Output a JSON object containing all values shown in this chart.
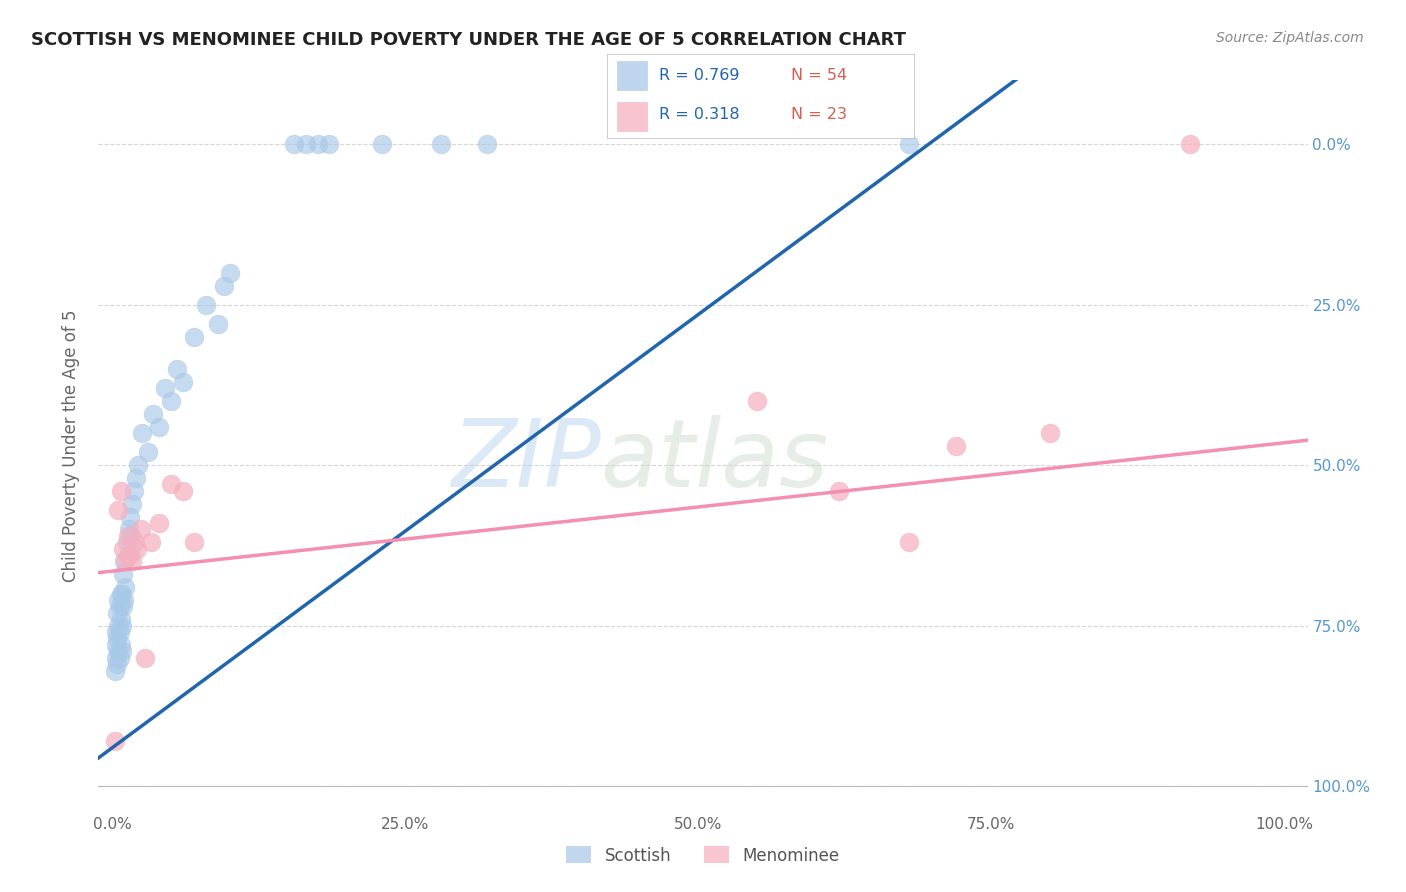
{
  "title": "SCOTTISH VS MENOMINEE CHILD POVERTY UNDER THE AGE OF 5 CORRELATION CHART",
  "source": "Source: ZipAtlas.com",
  "ylabel": "Child Poverty Under the Age of 5",
  "xlim": [
    -0.012,
    1.02
  ],
  "ylim": [
    -0.04,
    1.1
  ],
  "xtick_positions": [
    0.0,
    0.25,
    0.5,
    0.75,
    1.0
  ],
  "ytick_positions": [
    0.0,
    0.25,
    0.5,
    0.75,
    1.0
  ],
  "xticklabels": [
    "0.0%",
    "25.0%",
    "50.0%",
    "75.0%",
    "100.0%"
  ],
  "right_yticklabels": [
    "100.0%",
    "75.0%",
    "50.0%",
    "25.0%",
    "0.0%"
  ],
  "watermark_zip": "ZIP",
  "watermark_atlas": "atlas",
  "scottish_color": "#a8c8e8",
  "menominee_color": "#f5b0c0",
  "scottish_R": 0.769,
  "scottish_N": 54,
  "menominee_R": 0.318,
  "menominee_N": 23,
  "legend_R_color": "#2166ac",
  "legend_N_color": "#d6604d",
  "scottish_line_color": "#2166ac",
  "menominee_line_color": "#f48fb1",
  "grid_color": "#cccccc",
  "background_color": "#ffffff",
  "scatter_size": 180,
  "scottish_slope": 1.35,
  "scottish_intercept": 0.06,
  "menominee_slope": 0.2,
  "menominee_intercept": 0.335,
  "scottish_x": [
    0.002,
    0.003,
    0.003,
    0.003,
    0.004,
    0.004,
    0.004,
    0.005,
    0.005,
    0.005,
    0.006,
    0.006,
    0.006,
    0.007,
    0.007,
    0.007,
    0.008,
    0.008,
    0.008,
    0.009,
    0.009,
    0.01,
    0.01,
    0.011,
    0.012,
    0.013,
    0.014,
    0.015,
    0.016,
    0.017,
    0.018,
    0.02,
    0.022,
    0.025,
    0.03,
    0.035,
    0.04,
    0.045,
    0.05,
    0.055,
    0.06,
    0.07,
    0.08,
    0.09,
    0.095,
    0.1,
    0.155,
    0.165,
    0.175,
    0.185,
    0.23,
    0.28,
    0.32,
    0.68
  ],
  "scottish_y": [
    0.18,
    0.2,
    0.22,
    0.24,
    0.19,
    0.23,
    0.27,
    0.21,
    0.25,
    0.29,
    0.2,
    0.24,
    0.28,
    0.22,
    0.26,
    0.3,
    0.21,
    0.25,
    0.3,
    0.28,
    0.33,
    0.29,
    0.35,
    0.31,
    0.38,
    0.36,
    0.4,
    0.42,
    0.39,
    0.44,
    0.46,
    0.48,
    0.5,
    0.55,
    0.52,
    0.58,
    0.56,
    0.62,
    0.6,
    0.65,
    0.63,
    0.7,
    0.75,
    0.72,
    0.78,
    0.8,
    1.0,
    1.0,
    1.0,
    1.0,
    1.0,
    1.0,
    1.0,
    1.0
  ],
  "menominee_x": [
    0.002,
    0.005,
    0.007,
    0.009,
    0.011,
    0.013,
    0.015,
    0.017,
    0.019,
    0.021,
    0.024,
    0.028,
    0.033,
    0.04,
    0.05,
    0.06,
    0.07,
    0.55,
    0.62,
    0.68,
    0.72,
    0.8,
    0.92
  ],
  "menominee_y": [
    0.07,
    0.43,
    0.46,
    0.37,
    0.35,
    0.39,
    0.36,
    0.35,
    0.38,
    0.37,
    0.4,
    0.2,
    0.38,
    0.41,
    0.47,
    0.46,
    0.38,
    0.6,
    0.46,
    0.38,
    0.53,
    0.55,
    1.0
  ]
}
